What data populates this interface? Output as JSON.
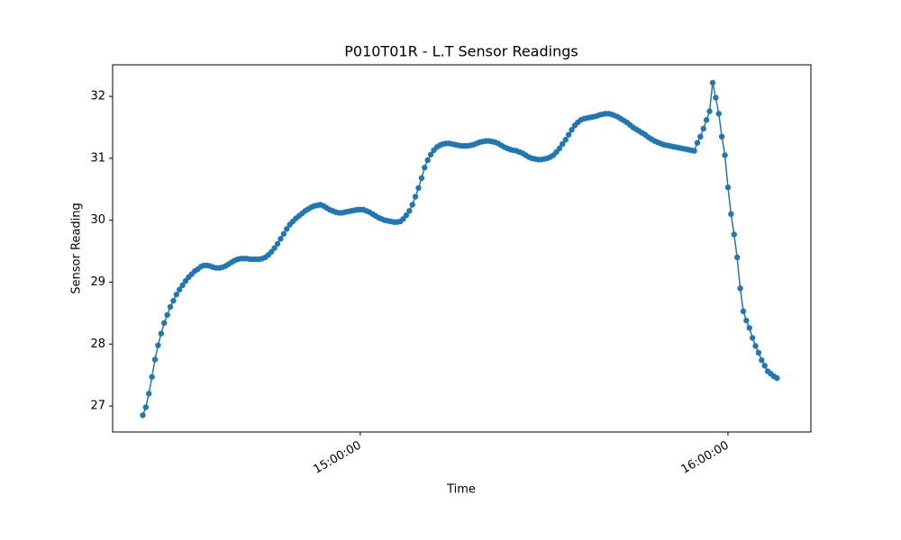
{
  "chart_data": {
    "type": "line",
    "title": "P010T01R - L.T Sensor Readings",
    "x_label": "Time",
    "y_label": "Sensor Reading",
    "x": [
      "14:24:30",
      "14:25:00",
      "14:25:30",
      "14:26:00",
      "14:26:30",
      "14:27:00",
      "14:27:30",
      "14:28:00",
      "14:28:30",
      "14:29:00",
      "14:29:30",
      "14:30:00",
      "14:30:30",
      "14:31:00",
      "14:31:30",
      "14:32:00",
      "14:32:30",
      "14:33:00",
      "14:33:30",
      "14:34:00",
      "14:34:30",
      "14:35:00",
      "14:35:30",
      "14:36:00",
      "14:36:30",
      "14:37:00",
      "14:37:30",
      "14:38:00",
      "14:38:30",
      "14:39:00",
      "14:39:30",
      "14:40:00",
      "14:40:30",
      "14:41:00",
      "14:41:30",
      "14:42:00",
      "14:42:30",
      "14:43:00",
      "14:43:30",
      "14:44:00",
      "14:44:30",
      "14:45:00",
      "14:45:30",
      "14:46:00",
      "14:46:30",
      "14:47:00",
      "14:47:30",
      "14:48:00",
      "14:48:30",
      "14:49:00",
      "14:49:30",
      "14:50:00",
      "14:50:30",
      "14:51:00",
      "14:51:30",
      "14:52:00",
      "14:52:30",
      "14:53:00",
      "14:53:30",
      "14:54:00",
      "14:54:30",
      "14:55:00",
      "14:55:30",
      "14:56:00",
      "14:56:30",
      "14:57:00",
      "14:57:30",
      "14:58:00",
      "14:58:30",
      "14:59:00",
      "14:59:30",
      "15:00:00",
      "15:00:30",
      "15:01:00",
      "15:01:30",
      "15:02:00",
      "15:02:30",
      "15:03:00",
      "15:03:30",
      "15:04:00",
      "15:04:30",
      "15:05:00",
      "15:05:30",
      "15:06:00",
      "15:06:30",
      "15:07:00",
      "15:07:30",
      "15:08:00",
      "15:08:30",
      "15:09:00",
      "15:09:30",
      "15:10:00",
      "15:10:30",
      "15:11:00",
      "15:11:30",
      "15:12:00",
      "15:12:30",
      "15:13:00",
      "15:13:30",
      "15:14:00",
      "15:14:30",
      "15:15:00",
      "15:15:30",
      "15:16:00",
      "15:16:30",
      "15:17:00",
      "15:17:30",
      "15:18:00",
      "15:18:30",
      "15:19:00",
      "15:19:30",
      "15:20:00",
      "15:20:30",
      "15:21:00",
      "15:21:30",
      "15:22:00",
      "15:22:30",
      "15:23:00",
      "15:23:30",
      "15:24:00",
      "15:24:30",
      "15:25:00",
      "15:25:30",
      "15:26:00",
      "15:26:30",
      "15:27:00",
      "15:27:30",
      "15:28:00",
      "15:28:30",
      "15:29:00",
      "15:29:30",
      "15:30:00",
      "15:30:30",
      "15:31:00",
      "15:31:30",
      "15:32:00",
      "15:32:30",
      "15:33:00",
      "15:33:30",
      "15:34:00",
      "15:34:30",
      "15:35:00",
      "15:35:30",
      "15:36:00",
      "15:36:30",
      "15:37:00",
      "15:37:30",
      "15:38:00",
      "15:38:30",
      "15:39:00",
      "15:39:30",
      "15:40:00",
      "15:40:30",
      "15:41:00",
      "15:41:30",
      "15:42:00",
      "15:42:30",
      "15:43:00",
      "15:43:30",
      "15:44:00",
      "15:44:30",
      "15:45:00",
      "15:45:30",
      "15:46:00",
      "15:46:30",
      "15:47:00",
      "15:47:30",
      "15:48:00",
      "15:48:30",
      "15:49:00",
      "15:49:30",
      "15:50:00",
      "15:50:30",
      "15:51:00",
      "15:51:30",
      "15:52:00",
      "15:52:30",
      "15:53:00",
      "15:53:30",
      "15:54:00",
      "15:54:30",
      "15:55:00",
      "15:55:30",
      "15:56:00",
      "15:56:30",
      "15:57:00",
      "15:57:30",
      "15:58:00",
      "15:58:30",
      "15:59:00",
      "15:59:30",
      "16:00:00",
      "16:00:30",
      "16:01:00",
      "16:01:30",
      "16:02:00",
      "16:02:30",
      "16:03:00",
      "16:03:30",
      "16:04:00",
      "16:04:30",
      "16:05:00",
      "16:05:30",
      "16:06:00",
      "16:06:30",
      "16:07:00",
      "16:07:30",
      "16:08:00"
    ],
    "series": [
      {
        "color": "#1f77b4",
        "values": [
          26.85,
          26.98,
          27.2,
          27.47,
          27.75,
          27.98,
          28.17,
          28.34,
          28.47,
          28.6,
          28.7,
          28.8,
          28.88,
          28.95,
          29.02,
          29.08,
          29.13,
          29.18,
          29.21,
          29.25,
          29.27,
          29.27,
          29.26,
          29.24,
          29.23,
          29.23,
          29.24,
          29.26,
          29.29,
          29.32,
          29.35,
          29.37,
          29.38,
          29.38,
          29.38,
          29.37,
          29.37,
          29.37,
          29.37,
          29.38,
          29.4,
          29.44,
          29.49,
          29.55,
          29.62,
          29.7,
          29.78,
          29.86,
          29.93,
          29.98,
          30.03,
          30.07,
          30.11,
          30.15,
          30.18,
          30.21,
          30.23,
          30.24,
          30.25,
          30.23,
          30.2,
          30.17,
          30.15,
          30.13,
          30.12,
          30.12,
          30.13,
          30.14,
          30.15,
          30.16,
          30.17,
          30.17,
          30.17,
          30.15,
          30.13,
          30.1,
          30.07,
          30.04,
          30.02,
          30.0,
          29.99,
          29.98,
          29.97,
          29.97,
          29.98,
          30.02,
          30.08,
          30.15,
          30.25,
          30.38,
          30.52,
          30.68,
          30.85,
          30.97,
          31.06,
          31.13,
          31.18,
          31.21,
          31.23,
          31.24,
          31.24,
          31.23,
          31.22,
          31.21,
          31.2,
          31.2,
          31.2,
          31.21,
          31.22,
          31.24,
          31.26,
          31.27,
          31.28,
          31.28,
          31.27,
          31.26,
          31.24,
          31.21,
          31.18,
          31.16,
          31.14,
          31.13,
          31.12,
          31.1,
          31.08,
          31.05,
          31.02,
          31.0,
          30.99,
          30.98,
          30.98,
          30.99,
          31.0,
          31.02,
          31.05,
          31.1,
          31.16,
          31.23,
          31.3,
          31.38,
          31.46,
          31.53,
          31.58,
          31.62,
          31.64,
          31.65,
          31.66,
          31.67,
          31.68,
          31.7,
          31.71,
          31.72,
          31.72,
          31.71,
          31.69,
          31.67,
          31.64,
          31.61,
          31.58,
          31.54,
          31.5,
          31.47,
          31.44,
          31.41,
          31.38,
          31.34,
          31.31,
          31.28,
          31.26,
          31.24,
          31.22,
          31.21,
          31.2,
          31.19,
          31.18,
          31.17,
          31.16,
          31.15,
          31.14,
          31.13,
          31.12,
          31.25,
          31.35,
          31.48,
          31.62,
          31.76,
          32.22,
          31.98,
          31.72,
          31.35,
          31.05,
          30.53,
          30.1,
          29.77,
          29.4,
          28.9,
          28.53,
          28.38,
          28.26,
          28.1,
          27.97,
          27.86,
          27.74,
          27.65,
          27.56,
          27.52,
          27.48,
          27.45
        ]
      }
    ],
    "xlim": [
      "14:19:35",
      "16:13:32"
    ],
    "xticks": [
      "15:00:00",
      "16:00:00"
    ],
    "ylim": [
      26.58,
      32.51
    ],
    "yticks": [
      27,
      28,
      29,
      30,
      31,
      32
    ],
    "grid": false
  }
}
